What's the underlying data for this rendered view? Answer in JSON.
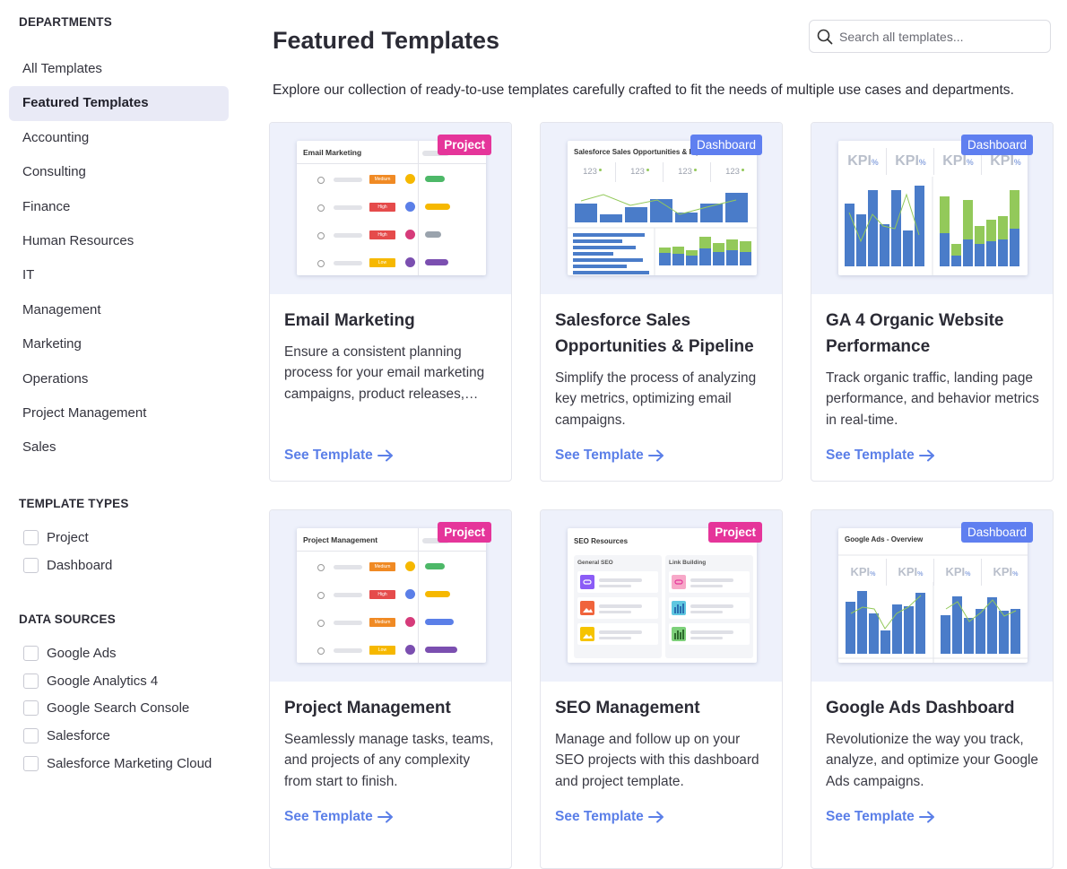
{
  "sidebar": {
    "departments_title": "DEPARTMENTS",
    "departments": [
      {
        "label": "All Templates",
        "active": false
      },
      {
        "label": "Featured Templates",
        "active": true
      },
      {
        "label": "Accounting",
        "active": false
      },
      {
        "label": "Consulting",
        "active": false
      },
      {
        "label": "Finance",
        "active": false
      },
      {
        "label": "Human Resources",
        "active": false
      },
      {
        "label": "IT",
        "active": false
      },
      {
        "label": "Management",
        "active": false
      },
      {
        "label": "Marketing",
        "active": false
      },
      {
        "label": "Operations",
        "active": false
      },
      {
        "label": "Project Management",
        "active": false
      },
      {
        "label": "Sales",
        "active": false
      }
    ],
    "template_types_title": "TEMPLATE TYPES",
    "template_types": [
      {
        "label": "Project",
        "checked": false
      },
      {
        "label": "Dashboard",
        "checked": false
      }
    ],
    "data_sources_title": "DATA SOURCES",
    "data_sources": [
      {
        "label": "Google Ads",
        "checked": false
      },
      {
        "label": "Google Analytics 4",
        "checked": false
      },
      {
        "label": "Google Search Console",
        "checked": false
      },
      {
        "label": "Salesforce",
        "checked": false
      },
      {
        "label": "Salesforce Marketing Cloud",
        "checked": false
      }
    ]
  },
  "header": {
    "title": "Featured Templates",
    "search_placeholder": "Search all templates...",
    "intro": "Explore our collection of ready-to-use templates carefully crafted to fit the needs of multiple use cases and departments."
  },
  "cards": [
    {
      "badge": "Project",
      "mock_title": "Email Marketing",
      "title": "Email Marketing",
      "description": "Ensure a consistent planning process for your email marketing campaigns, product releases,…",
      "link": "See Template",
      "priorities": [
        "Medium",
        "High",
        "High",
        "Low"
      ]
    },
    {
      "badge": "Dashboard",
      "mock_title": "Salesforce Sales Opportunities & Pipe",
      "title": "Salesforce Sales Opportunities & Pipeline",
      "description": "Simplify the process of analyzing key metrics, optimizing email campaigns.",
      "link": "See Template",
      "kpis": [
        "123",
        "123",
        "123",
        "123"
      ]
    },
    {
      "badge": "Dashboard",
      "title": "GA 4 Organic Website Performance",
      "description": "Track organic traffic, landing page performance, and behavior metrics in real-time.",
      "link": "See Template",
      "kpis": [
        "KPI",
        "KPI",
        "KPI",
        "KPI"
      ]
    },
    {
      "badge": "Project",
      "mock_title": "Project Management",
      "title": "Project Management",
      "description": "Seamlessly manage tasks, teams, and projects of any complexity from start to finish.",
      "link": "See Template",
      "priorities": [
        "Medium",
        "High",
        "Medium",
        "Low"
      ]
    },
    {
      "badge": "Project",
      "mock_title": "SEO Resources",
      "title": "SEO Management",
      "description": "Manage and follow up on your SEO projects with this dashboard and project template.",
      "link": "See Template",
      "columns": [
        "General SEO",
        "Link Building"
      ]
    },
    {
      "badge": "Dashboard",
      "mock_title": "Google Ads - Overview",
      "title": "Google Ads Dashboard",
      "description": "Revolutionize the way you track, analyze, and optimize your Google Ads campaigns.",
      "link": "See Template",
      "kpis": [
        "KPI",
        "KPI",
        "KPI",
        "KPI"
      ]
    }
  ],
  "colors": {
    "accent": "#5b7fe8",
    "project_badge": "#e5359a",
    "dashboard_badge": "#5f7ff0",
    "bar_blue": "#4a7cc9",
    "bar_green": "#93c95a",
    "priority_medium": "#f08a24",
    "priority_high": "#e54b4b",
    "priority_low": "#f6b800"
  }
}
